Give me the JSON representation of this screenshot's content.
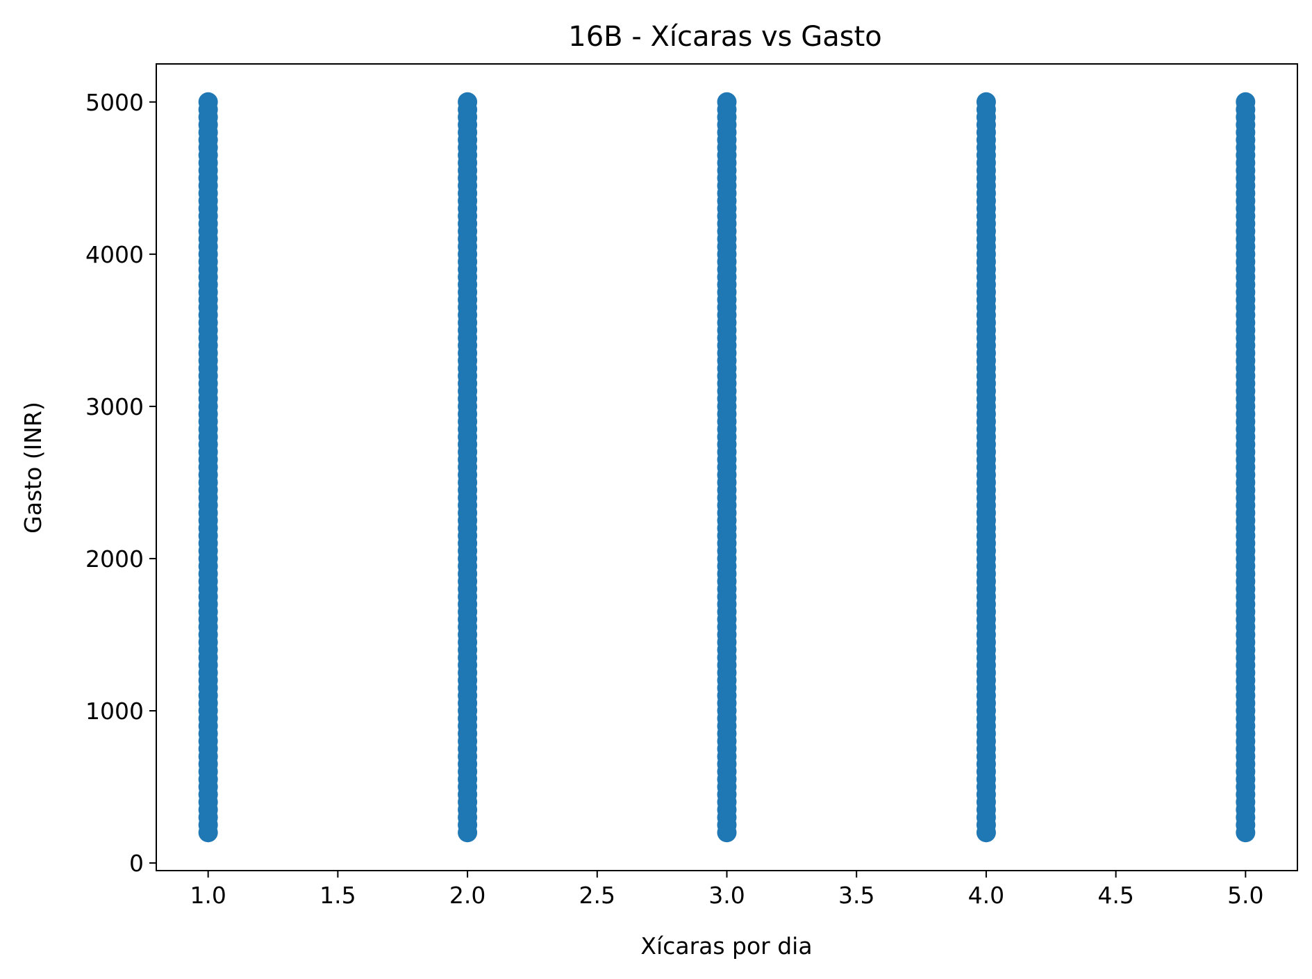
{
  "chart_data": {
    "type": "scatter",
    "title": "16B - Xícaras vs Gasto",
    "xlabel": "Xícaras por dia",
    "ylabel": "Gasto (INR)",
    "xlim": [
      0.8,
      5.2
    ],
    "ylim": [
      -50,
      5250
    ],
    "xticks": [
      1.0,
      1.5,
      2.0,
      2.5,
      3.0,
      3.5,
      4.0,
      4.5,
      5.0
    ],
    "xtick_labels": [
      "1.0",
      "1.5",
      "2.0",
      "2.5",
      "3.0",
      "3.5",
      "4.0",
      "4.5",
      "5.0"
    ],
    "yticks": [
      0,
      1000,
      2000,
      3000,
      4000,
      5000
    ],
    "ytick_labels": [
      "0",
      "1000",
      "2000",
      "3000",
      "4000",
      "5000"
    ],
    "x_values": [
      1,
      2,
      3,
      4,
      5
    ],
    "y_range": [
      200,
      5000
    ],
    "y_step": 50,
    "marker_color": "#1f77b4",
    "grid": false,
    "legend": "none"
  }
}
